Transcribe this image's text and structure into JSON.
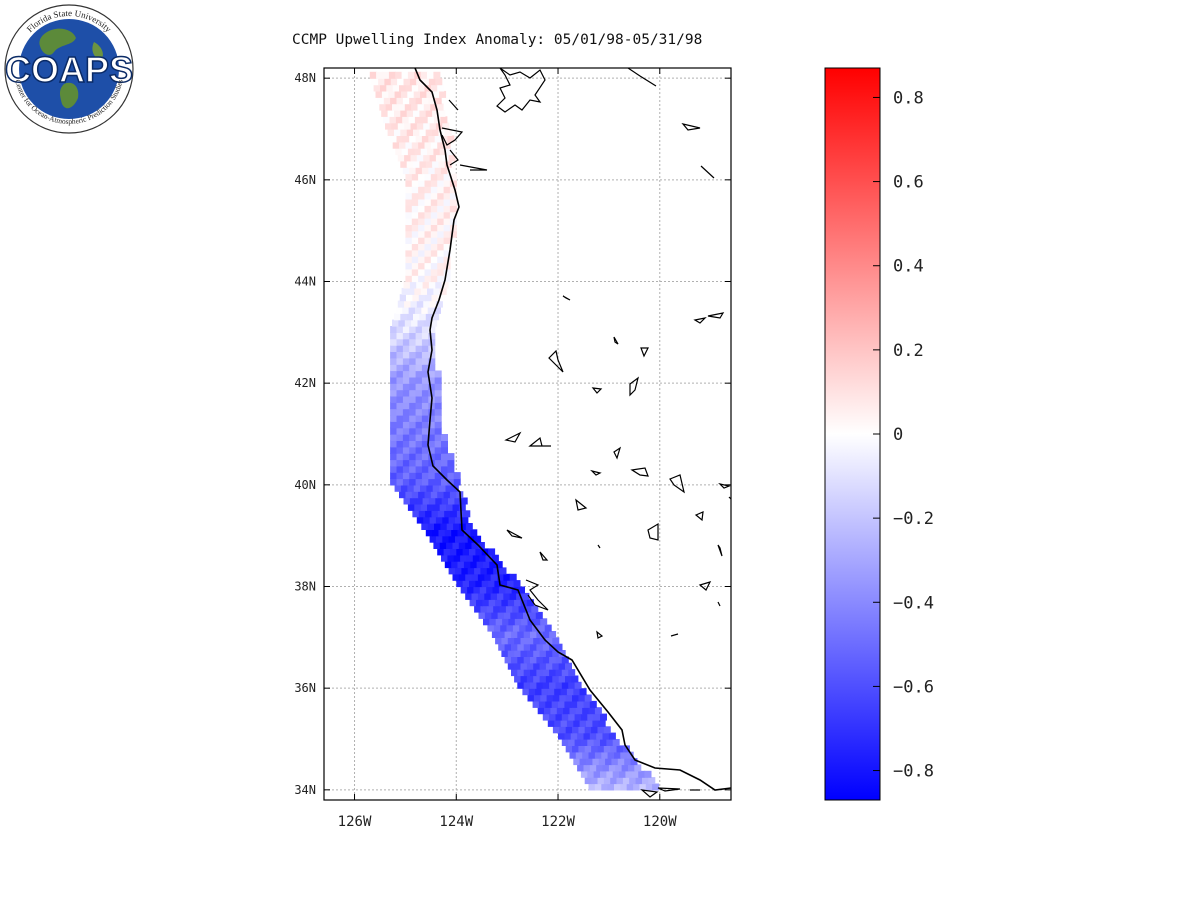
{
  "title": "CCMP Upwelling Index Anomaly: 05/01/98-05/31/98",
  "logo": {
    "text": "COAPS",
    "ring_top": "Florida State University",
    "ring_bottom": "Center for Ocean-Atmospheric Prediction Studies"
  },
  "map": {
    "lon_range": [
      -126.6,
      -118.6
    ],
    "lat_range": [
      33.8,
      48.2
    ],
    "lat_ticks": [
      {
        "value": 48,
        "label": "48N"
      },
      {
        "value": 46,
        "label": "46N"
      },
      {
        "value": 44,
        "label": "44N"
      },
      {
        "value": 42,
        "label": "42N"
      },
      {
        "value": 40,
        "label": "40N"
      },
      {
        "value": 38,
        "label": "38N"
      },
      {
        "value": 36,
        "label": "36N"
      },
      {
        "value": 34,
        "label": "34N"
      }
    ],
    "lon_ticks": [
      {
        "value": -126,
        "label": "126W"
      },
      {
        "value": -124,
        "label": "124W"
      },
      {
        "value": -122,
        "label": "122W"
      },
      {
        "value": -120,
        "label": "120W"
      }
    ],
    "gridlines": true,
    "anomaly_band": [
      {
        "lat": 48.0,
        "lon_w": -125.7,
        "lon_e": -124.4,
        "value": 0.08
      },
      {
        "lat": 47.0,
        "lon_w": -125.4,
        "lon_e": -124.2,
        "value": 0.07
      },
      {
        "lat": 46.0,
        "lon_w": -125.0,
        "lon_e": -124.1,
        "value": 0.05
      },
      {
        "lat": 45.0,
        "lon_w": -125.0,
        "lon_e": -124.1,
        "value": 0.04
      },
      {
        "lat": 44.0,
        "lon_w": -125.0,
        "lon_e": -124.2,
        "value": 0.02
      },
      {
        "lat": 43.0,
        "lon_w": -125.3,
        "lon_e": -124.5,
        "value": -0.12
      },
      {
        "lat": 42.0,
        "lon_w": -125.3,
        "lon_e": -124.4,
        "value": -0.35
      },
      {
        "lat": 41.0,
        "lon_w": -125.3,
        "lon_e": -124.3,
        "value": -0.45
      },
      {
        "lat": 40.0,
        "lon_w": -125.3,
        "lon_e": -124.0,
        "value": -0.55
      },
      {
        "lat": 39.0,
        "lon_w": -124.6,
        "lon_e": -123.7,
        "value": -0.8
      },
      {
        "lat": 38.0,
        "lon_w": -124.0,
        "lon_e": -122.8,
        "value": -0.75
      },
      {
        "lat": 37.0,
        "lon_w": -123.3,
        "lon_e": -122.1,
        "value": -0.5
      },
      {
        "lat": 36.0,
        "lon_w": -122.8,
        "lon_e": -121.6,
        "value": -0.65
      },
      {
        "lat": 35.0,
        "lon_w": -122.0,
        "lon_e": -120.9,
        "value": -0.6
      },
      {
        "lat": 34.0,
        "lon_w": -121.4,
        "lon_e": -120.1,
        "value": -0.25
      }
    ]
  },
  "colorbar": {
    "range": [
      -0.87,
      0.87
    ],
    "colors": {
      "min": "#0000ff",
      "mid": "#ffffff",
      "max": "#ff0000"
    },
    "ticks": [
      {
        "value": 0.8,
        "label": "0.8"
      },
      {
        "value": 0.6,
        "label": "0.6"
      },
      {
        "value": 0.4,
        "label": "0.4"
      },
      {
        "value": 0.2,
        "label": "0.2"
      },
      {
        "value": 0,
        "label": "0"
      },
      {
        "value": -0.2,
        "label": "−0.2"
      },
      {
        "value": -0.4,
        "label": "−0.4"
      },
      {
        "value": -0.6,
        "label": "−0.6"
      },
      {
        "value": -0.8,
        "label": "−0.8"
      }
    ]
  }
}
